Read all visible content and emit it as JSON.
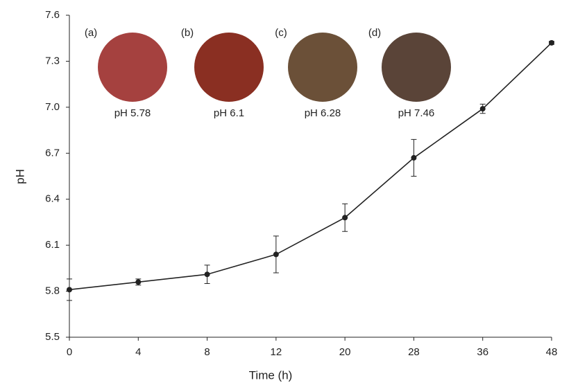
{
  "chart_data": {
    "type": "line",
    "x_label": "Time (h)",
    "y_label": "pH",
    "categories": [
      "0",
      "4",
      "8",
      "12",
      "20",
      "28",
      "36",
      "48"
    ],
    "series": [
      {
        "color": "#222222",
        "values": [
          5.81,
          5.86,
          5.91,
          6.04,
          6.28,
          6.67,
          6.99,
          7.42
        ],
        "errors": [
          0.07,
          0.02,
          0.06,
          0.12,
          0.09,
          0.12,
          0.03,
          0.01
        ]
      }
    ],
    "ylim": [
      5.5,
      7.6
    ],
    "yticks": [
      5.5,
      5.8,
      6.1,
      6.4,
      6.7,
      {
        "value": 7,
        "label": "7.0"
      },
      7.3,
      7.6
    ],
    "insets": [
      {
        "letter": "(a)",
        "label": "pH 5.78",
        "color": "#a5413f"
      },
      {
        "letter": "(b)",
        "label": "pH 6.1",
        "color": "#8a2f22"
      },
      {
        "letter": "(c)",
        "label": "pH 6.28",
        "color": "#6b5038"
      },
      {
        "letter": "(d)",
        "label": "pH 7.46",
        "color": "#5a4438"
      }
    ]
  }
}
